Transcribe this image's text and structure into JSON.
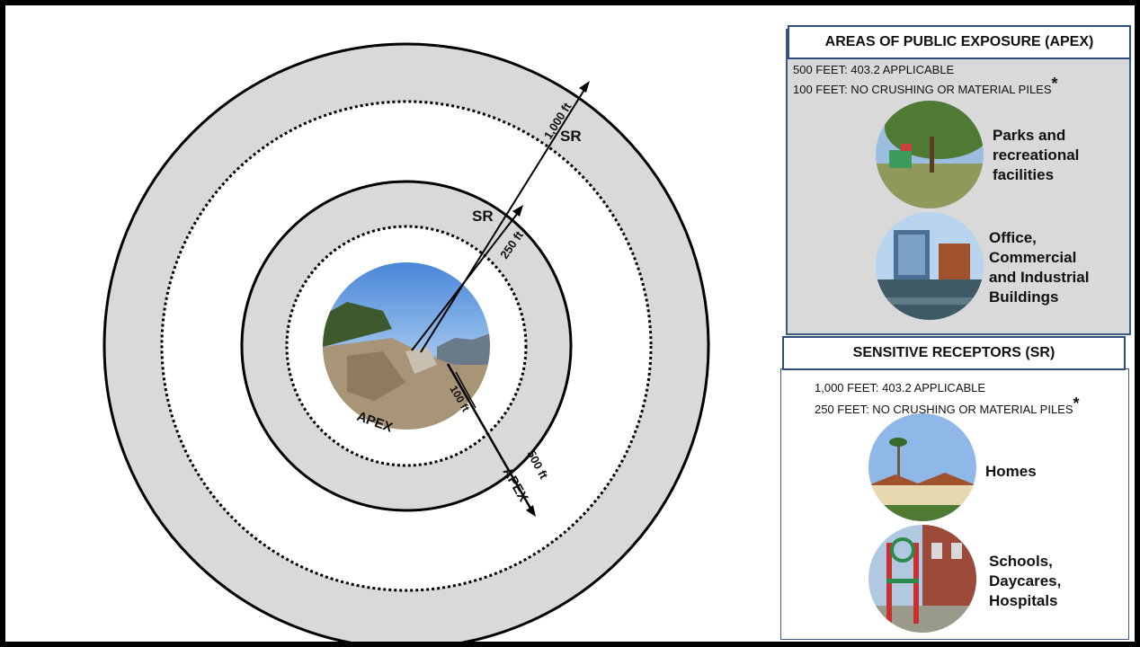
{
  "diagram": {
    "labels": {
      "sr_outer": "SR",
      "sr_inner": "SR",
      "dist_1000": "1,000 ft",
      "dist_250": "250 ft",
      "dist_100": "100 ft",
      "dist_500": "500 ft",
      "apex_inner": "APEX",
      "apex_outer": "APEX"
    }
  },
  "apex_panel": {
    "title": "AREAS OF PUBLIC EXPOSURE (APEX)",
    "rule1": "500 FEET: 403.2 APPLICABLE",
    "rule2": "100 FEET: NO CRUSHING OR MATERIAL PILES",
    "asterisk": "*",
    "items": [
      {
        "caption": "Parks and\nrecreational\nfacilities"
      },
      {
        "caption": "Office,\nCommercial\nand Industrial\nBuildings"
      }
    ]
  },
  "sr_panel": {
    "title": "SENSITIVE RECEPTORS (SR)",
    "rule1": "1,000 FEET: 403.2 APPLICABLE",
    "rule2": "250 FEET: NO CRUSHING OR MATERIAL PILES",
    "asterisk": "*",
    "items": [
      {
        "caption": "Homes"
      },
      {
        "caption": "Schools,\nDaycares,\nHospitals"
      }
    ]
  },
  "colors": {
    "ring_fill": "#d9d9d9",
    "border": "#2f4f7a"
  }
}
